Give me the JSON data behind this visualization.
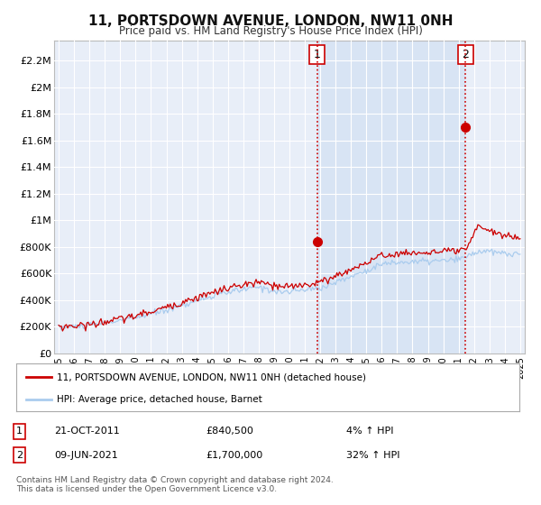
{
  "title": "11, PORTSDOWN AVENUE, LONDON, NW11 0NH",
  "subtitle": "Price paid vs. HM Land Registry's House Price Index (HPI)",
  "ylabel_ticks": [
    "£0",
    "£200K",
    "£400K",
    "£600K",
    "£800K",
    "£1M",
    "£1.2M",
    "£1.4M",
    "£1.6M",
    "£1.8M",
    "£2M",
    "£2.2M"
  ],
  "ylabel_values": [
    0,
    200000,
    400000,
    600000,
    800000,
    1000000,
    1200000,
    1400000,
    1600000,
    1800000,
    2000000,
    2200000
  ],
  "ylim": [
    0,
    2350000
  ],
  "xlim_start": 1994.7,
  "xlim_end": 2025.3,
  "red_line_color": "#cc0000",
  "blue_line_color": "#aaccee",
  "dot_color": "#cc0000",
  "vline_color": "#cc0000",
  "marker1_x": 2011.8,
  "marker1_y": 840500,
  "marker2_x": 2021.45,
  "marker2_y": 1700000,
  "annotation1_label": "1",
  "annotation2_label": "2",
  "legend_label_red": "11, PORTSDOWN AVENUE, LONDON, NW11 0NH (detached house)",
  "legend_label_blue": "HPI: Average price, detached house, Barnet",
  "note1_num": "1",
  "note1_date": "21-OCT-2011",
  "note1_price": "£840,500",
  "note1_change": "4% ↑ HPI",
  "note2_num": "2",
  "note2_date": "09-JUN-2021",
  "note2_price": "£1,700,000",
  "note2_change": "32% ↑ HPI",
  "footer": "Contains HM Land Registry data © Crown copyright and database right 2024.\nThis data is licensed under the Open Government Licence v3.0.",
  "bg_color": "#ffffff",
  "plot_bg_color": "#e8eef8",
  "highlight_bg_color": "#d8e4f4",
  "grid_color": "#ffffff"
}
